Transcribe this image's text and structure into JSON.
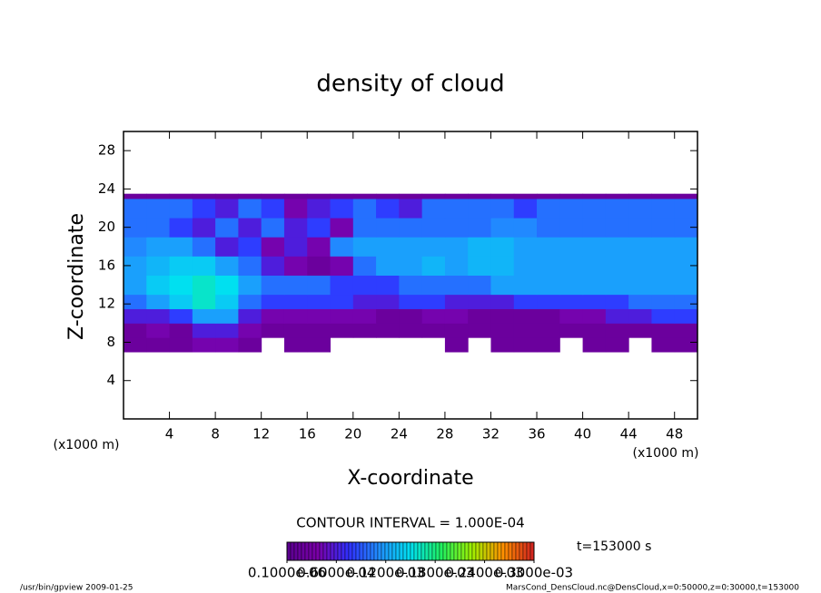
{
  "chart_data": {
    "type": "heatmap",
    "title": "density of cloud",
    "x_label": "X-coordinate",
    "y_label": "Z-coordinate",
    "y_unit": "(x1000 m)",
    "x_unit": "(x1000 m)",
    "xlim": [
      0,
      50
    ],
    "ylim": [
      0,
      30
    ],
    "xticks": [
      4,
      8,
      12,
      16,
      20,
      24,
      28,
      32,
      36,
      40,
      44,
      48
    ],
    "yticks": [
      4,
      8,
      12,
      16,
      20,
      24,
      28
    ],
    "x_edges": [
      0,
      2,
      4,
      6,
      8,
      10,
      12,
      14,
      16,
      18,
      20,
      22,
      24,
      26,
      28,
      30,
      32,
      34,
      36,
      38,
      40,
      42,
      44,
      46,
      48,
      50
    ],
    "y_edges": [
      7,
      8.5,
      10,
      11.5,
      13,
      15,
      17,
      19,
      21,
      23,
      23.5
    ],
    "z": [
      [
        2e-05,
        2e-05,
        2e-05,
        4e-05,
        4e-05,
        2e-05,
        null,
        2e-05,
        2e-05,
        null,
        null,
        null,
        null,
        null,
        2e-05,
        null,
        2e-05,
        2e-05,
        2e-05,
        null,
        2e-05,
        2e-05,
        null,
        2e-05,
        2e-05
      ],
      [
        2e-05,
        4e-05,
        2e-05,
        6e-05,
        6e-05,
        4e-05,
        2e-05,
        2e-05,
        2e-05,
        2e-05,
        2e-05,
        2e-05,
        2e-05,
        2e-05,
        2e-05,
        2e-05,
        2e-05,
        2e-05,
        2e-05,
        2e-05,
        2e-05,
        2e-05,
        2e-05,
        2e-05,
        2e-05
      ],
      [
        6e-05,
        6e-05,
        8e-05,
        0.00012,
        0.00012,
        6e-05,
        4e-05,
        4e-05,
        4e-05,
        4e-05,
        4e-05,
        2e-05,
        2e-05,
        4e-05,
        4e-05,
        2e-05,
        2e-05,
        2e-05,
        2e-05,
        4e-05,
        4e-05,
        6e-05,
        6e-05,
        8e-05,
        8e-05
      ],
      [
        0.0001,
        0.00012,
        0.00014,
        0.00016,
        0.00014,
        0.0001,
        8e-05,
        8e-05,
        8e-05,
        8e-05,
        6e-05,
        6e-05,
        8e-05,
        8e-05,
        6e-05,
        6e-05,
        6e-05,
        8e-05,
        8e-05,
        8e-05,
        8e-05,
        8e-05,
        0.0001,
        0.0001,
        0.0001
      ],
      [
        0.00012,
        0.00014,
        0.00015,
        0.00016,
        0.00015,
        0.00012,
        0.0001,
        0.0001,
        0.0001,
        8e-05,
        8e-05,
        8e-05,
        0.0001,
        0.0001,
        0.0001,
        0.0001,
        0.00012,
        0.00012,
        0.00012,
        0.00012,
        0.00012,
        0.00012,
        0.00012,
        0.00012,
        0.00012
      ],
      [
        0.00012,
        0.00013,
        0.00014,
        0.00014,
        0.00012,
        0.0001,
        6e-05,
        4e-05,
        2e-05,
        4e-05,
        0.0001,
        0.00012,
        0.00012,
        0.00013,
        0.00012,
        0.00013,
        0.00013,
        0.00012,
        0.00012,
        0.00012,
        0.00012,
        0.00012,
        0.00012,
        0.00012,
        0.00012
      ],
      [
        0.00011,
        0.00012,
        0.00012,
        0.0001,
        6e-05,
        8e-05,
        4e-05,
        6e-05,
        4e-05,
        0.00011,
        0.00012,
        0.00012,
        0.00012,
        0.00012,
        0.00012,
        0.00013,
        0.00013,
        0.00012,
        0.00012,
        0.00012,
        0.00012,
        0.00012,
        0.00012,
        0.00012,
        0.00012
      ],
      [
        0.0001,
        0.0001,
        8e-05,
        6e-05,
        0.0001,
        6e-05,
        0.0001,
        6e-05,
        8e-05,
        4e-05,
        0.0001,
        0.0001,
        0.0001,
        0.0001,
        0.0001,
        0.0001,
        0.00011,
        0.00011,
        0.0001,
        0.0001,
        0.0001,
        0.0001,
        0.0001,
        0.0001,
        0.0001
      ],
      [
        0.0001,
        0.0001,
        0.0001,
        8e-05,
        6e-05,
        0.0001,
        8e-05,
        4e-05,
        6e-05,
        8e-05,
        0.0001,
        8e-05,
        6e-05,
        0.0001,
        0.0001,
        0.0001,
        0.0001,
        8e-05,
        0.0001,
        0.0001,
        0.0001,
        0.0001,
        0.0001,
        0.0001,
        0.0001
      ],
      [
        2e-05,
        2e-05,
        2e-05,
        2e-05,
        2e-05,
        2e-05,
        2e-05,
        2e-05,
        2e-05,
        2e-05,
        2e-05,
        2e-05,
        2e-05,
        2e-05,
        2e-05,
        2e-05,
        2e-05,
        2e-05,
        2e-05,
        2e-05,
        2e-05,
        2e-05,
        2e-05,
        2e-05,
        2e-05
      ]
    ],
    "colors": [
      "#5a0090",
      "#7a00a8",
      "#3030ff",
      "#2090ff",
      "#00e0f0",
      "#20f060",
      "#a0f000",
      "#ff9000",
      "#d02020"
    ],
    "colorbar": {
      "range": [
        1e-07,
        0.0003
      ],
      "ticks": [
        {
          "value": 1e-07,
          "label": "0.1000e-06"
        },
        {
          "value": 6e-05,
          "label": "0.6000e-04"
        },
        {
          "value": 0.00012,
          "label": "0.1200e-03"
        },
        {
          "value": 0.00018,
          "label": "0.1800e-03"
        },
        {
          "value": 0.00024,
          "label": "0.2400e-03"
        },
        {
          "value": 0.0003,
          "label": "0.3000e-03"
        }
      ]
    },
    "contour_interval": "CONTOUR INTERVAL = 1.000E-04",
    "time": "t=153000 s",
    "footer_left": "/usr/bin/gpview  2009-01-25",
    "footer_right": "MarsCond_DensCloud.nc@DensCloud,x=0:50000,z=0:30000,t=153000"
  }
}
